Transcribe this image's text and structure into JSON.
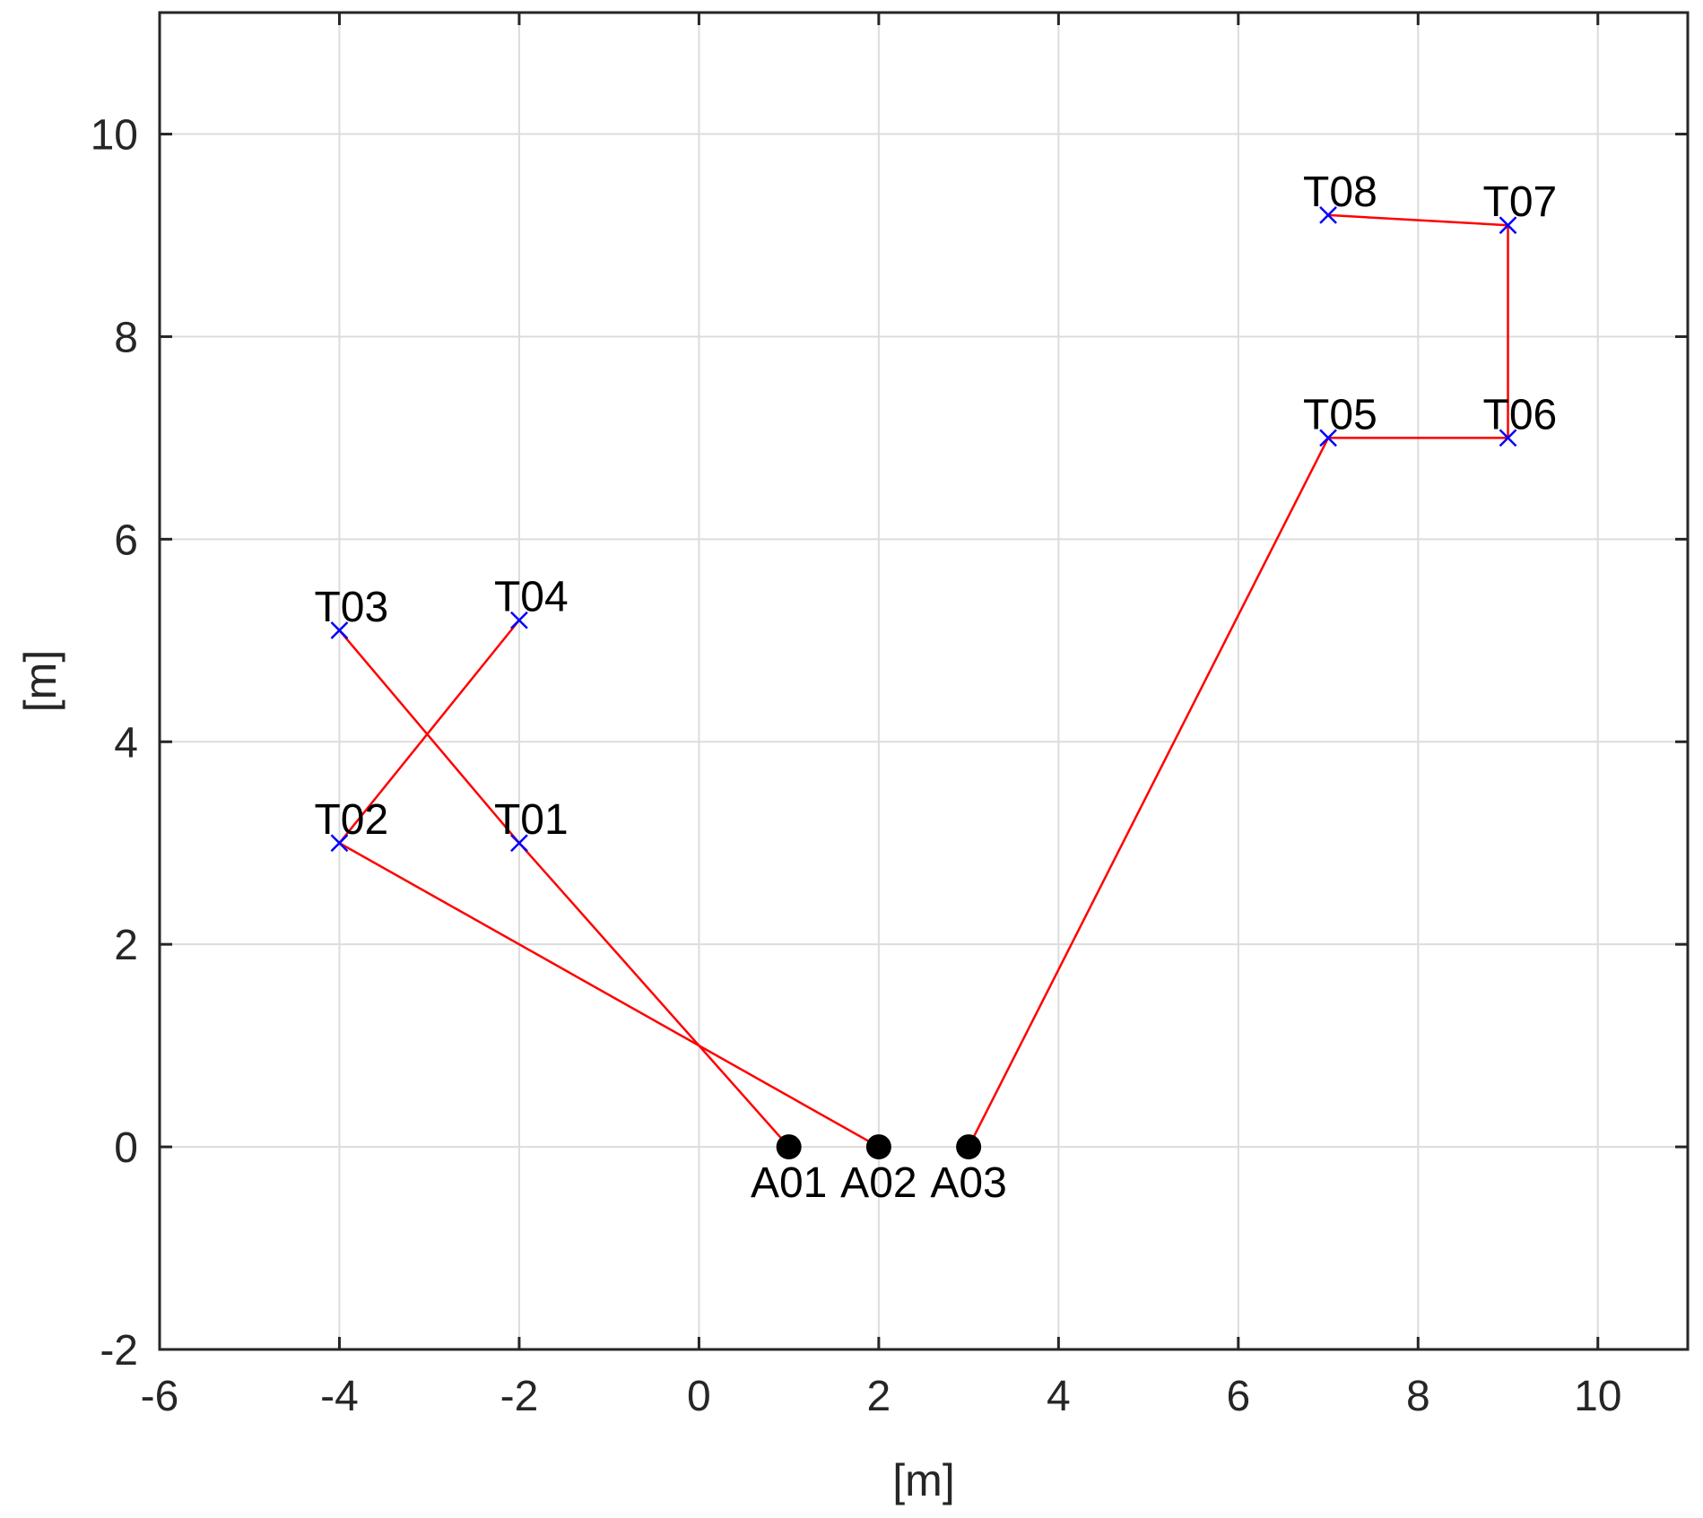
{
  "chart_data": {
    "type": "scatter",
    "xlabel": "[m]",
    "ylabel": "[m]",
    "xlim": [
      -6,
      11
    ],
    "ylim": [
      -2,
      11.2
    ],
    "x_ticks": [
      -6,
      -4,
      -2,
      0,
      2,
      4,
      6,
      8,
      10
    ],
    "y_ticks": [
      -2,
      0,
      2,
      4,
      6,
      8,
      10
    ],
    "grid": true,
    "colors": {
      "path": "#ff0000",
      "tag_marker": "#0000ff",
      "anchor_marker": "#000000"
    },
    "anchors": [
      {
        "label": "A01",
        "x": 1,
        "y": 0
      },
      {
        "label": "A02",
        "x": 2,
        "y": 0
      },
      {
        "label": "A03",
        "x": 3,
        "y": 0
      }
    ],
    "tags": [
      {
        "label": "T01",
        "x": -2,
        "y": 3
      },
      {
        "label": "T02",
        "x": -4,
        "y": 3
      },
      {
        "label": "T03",
        "x": -4,
        "y": 5.1
      },
      {
        "label": "T04",
        "x": -2,
        "y": 5.2
      },
      {
        "label": "T05",
        "x": 7,
        "y": 7
      },
      {
        "label": "T06",
        "x": 9,
        "y": 7
      },
      {
        "label": "T07",
        "x": 9,
        "y": 9.1
      },
      {
        "label": "T08",
        "x": 7,
        "y": 9.2
      }
    ],
    "segments": [
      {
        "from": "A01",
        "to": "T01"
      },
      {
        "from": "T01",
        "to": "T03"
      },
      {
        "from": "A02",
        "to": "T02"
      },
      {
        "from": "T02",
        "to": "T04"
      },
      {
        "from": "A03",
        "to": "T05"
      },
      {
        "from": "T05",
        "to": "T06"
      },
      {
        "from": "T06",
        "to": "T07"
      },
      {
        "from": "T07",
        "to": "T08"
      }
    ]
  }
}
